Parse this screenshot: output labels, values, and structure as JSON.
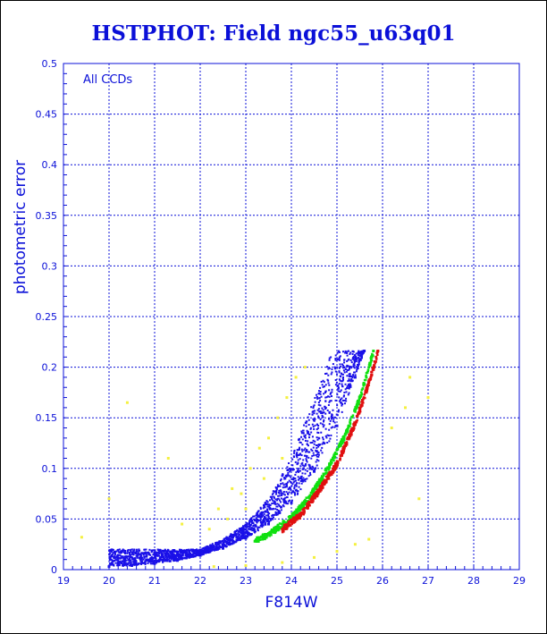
{
  "colors": {
    "axis": "#0b10d8",
    "grid": "#0b10d8",
    "text": "#0b10d8",
    "series_blue": "#1a10e8",
    "series_green": "#10e010",
    "series_red": "#e01010",
    "series_yellow": "#f4f040"
  },
  "chart_data": {
    "type": "scatter",
    "title": "HSTPHOT: Field ngc55_u63q01",
    "xlabel": "F814W",
    "ylabel": "photometric error",
    "annotation": "All CCDs",
    "xlim": [
      19,
      29
    ],
    "ylim": [
      0,
      0.5
    ],
    "grid": true,
    "x_ticks": [
      "19",
      "20",
      "21",
      "22",
      "23",
      "24",
      "25",
      "26",
      "27",
      "28",
      "29"
    ],
    "y_ticks": [
      "0",
      "0.05",
      "0.1",
      "0.15",
      "0.2",
      "0.25",
      "0.3",
      "0.35",
      "0.4",
      "0.45",
      "0.5"
    ],
    "series": [
      {
        "color_key": "series_blue",
        "points": [
          [
            20.0,
            0.003
          ],
          [
            20.5,
            0.004
          ],
          [
            21.0,
            0.006
          ],
          [
            21.5,
            0.009
          ],
          [
            22.0,
            0.014
          ],
          [
            22.5,
            0.021
          ],
          [
            23.0,
            0.031
          ],
          [
            23.5,
            0.045
          ],
          [
            24.0,
            0.066
          ],
          [
            24.5,
            0.097
          ],
          [
            25.0,
            0.142
          ],
          [
            25.4,
            0.19
          ],
          [
            25.6,
            0.216
          ]
        ],
        "upper_envelope": [
          [
            22.0,
            0.02
          ],
          [
            22.5,
            0.03
          ],
          [
            23.0,
            0.045
          ],
          [
            23.5,
            0.07
          ],
          [
            24.0,
            0.11
          ],
          [
            24.5,
            0.17
          ],
          [
            24.9,
            0.216
          ]
        ]
      },
      {
        "color_key": "series_green",
        "points": [
          [
            23.2,
            0.028
          ],
          [
            23.6,
            0.038
          ],
          [
            24.0,
            0.052
          ],
          [
            24.4,
            0.072
          ],
          [
            24.8,
            0.1
          ],
          [
            25.2,
            0.135
          ],
          [
            25.5,
            0.17
          ],
          [
            25.8,
            0.216
          ]
        ]
      },
      {
        "color_key": "series_red",
        "points": [
          [
            23.8,
            0.04
          ],
          [
            24.2,
            0.054
          ],
          [
            24.6,
            0.078
          ],
          [
            25.0,
            0.105
          ],
          [
            25.4,
            0.145
          ],
          [
            25.7,
            0.185
          ],
          [
            25.9,
            0.216
          ]
        ]
      },
      {
        "color_key": "series_yellow",
        "points": [
          [
            22.4,
            0.06
          ],
          [
            22.7,
            0.08
          ],
          [
            22.9,
            0.075
          ],
          [
            23.1,
            0.1
          ],
          [
            23.3,
            0.12
          ],
          [
            23.5,
            0.13
          ],
          [
            23.7,
            0.15
          ],
          [
            23.9,
            0.17
          ],
          [
            24.1,
            0.19
          ],
          [
            24.3,
            0.2
          ],
          [
            22.2,
            0.04
          ],
          [
            23.0,
            0.06
          ],
          [
            23.4,
            0.09
          ],
          [
            22.6,
            0.05
          ],
          [
            23.8,
            0.11
          ],
          [
            22.3,
            0.003
          ],
          [
            23.0,
            0.004
          ],
          [
            23.8,
            0.007
          ],
          [
            24.5,
            0.012
          ],
          [
            25.0,
            0.018
          ],
          [
            25.4,
            0.025
          ],
          [
            25.7,
            0.03
          ],
          [
            20.4,
            0.165
          ],
          [
            21.3,
            0.11
          ],
          [
            21.6,
            0.045
          ],
          [
            26.2,
            0.14
          ],
          [
            26.5,
            0.16
          ],
          [
            26.6,
            0.19
          ],
          [
            27.0,
            0.17
          ],
          [
            26.8,
            0.07
          ],
          [
            19.4,
            0.032
          ],
          [
            20.0,
            0.07
          ]
        ]
      }
    ]
  }
}
